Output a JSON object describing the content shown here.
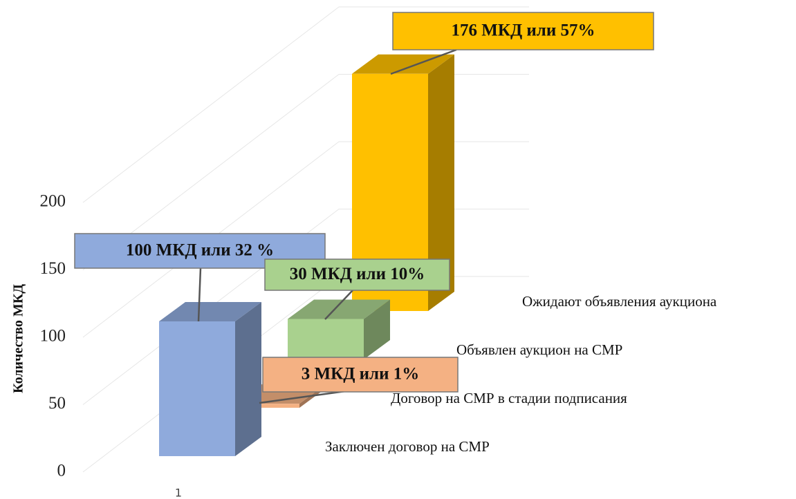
{
  "chart_data": {
    "type": "bar3d",
    "y_axis_label": "Количество МКД",
    "categories": [
      "1"
    ],
    "series": [
      {
        "name": "Заключен договор на СМР",
        "color": "#8faadc",
        "values": [
          100
        ],
        "value_labels": [
          "100 МКД или 32 %"
        ]
      },
      {
        "name": "Договор на СМР в стадии подписания",
        "color": "#f4b183",
        "values": [
          3
        ],
        "value_labels": [
          "3 МКД или 1%"
        ]
      },
      {
        "name": "Объявлен аукцион на СМР",
        "color": "#a9d18e",
        "values": [
          30
        ],
        "value_labels": [
          "30 МКД или 10%"
        ]
      },
      {
        "name": "Ожидают объявления аукциона",
        "color": "#ffc000",
        "values": [
          176
        ],
        "value_labels": [
          "176 МКД или 57%"
        ]
      }
    ],
    "ylim": [
      0,
      200
    ],
    "yticks": [
      0,
      50,
      100,
      150,
      200
    ],
    "grid": true
  }
}
